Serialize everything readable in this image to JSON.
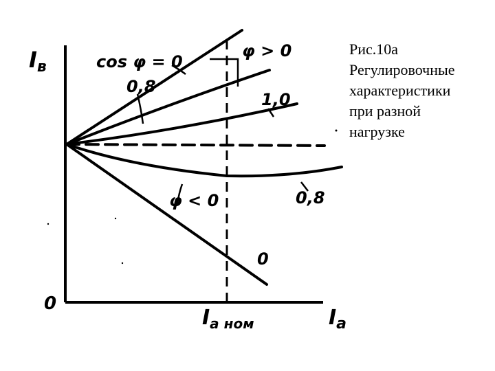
{
  "caption": {
    "lines": [
      "Рис.10а",
      "Регулировочные",
      "характеристики",
      "при разной",
      "нагрузке"
    ]
  },
  "axes": {
    "y_label_main": "I",
    "y_label_sub": "в",
    "x_label_main": "I",
    "x_label_sub": "а",
    "origin": "0",
    "x_nominal_main": "I",
    "x_nominal_sub": "а ном"
  },
  "curve_labels": {
    "cos_phi_0": "cos φ = 0",
    "phi_gt_0": "φ > 0",
    "lag_0_8": "0,8",
    "unity_1_0": "1,0",
    "phi_lt_0": "φ < 0",
    "lead_0_8": "0,8",
    "lead_0": "0"
  },
  "colors": {
    "ink": "#000000",
    "background": "#ffffff"
  }
}
